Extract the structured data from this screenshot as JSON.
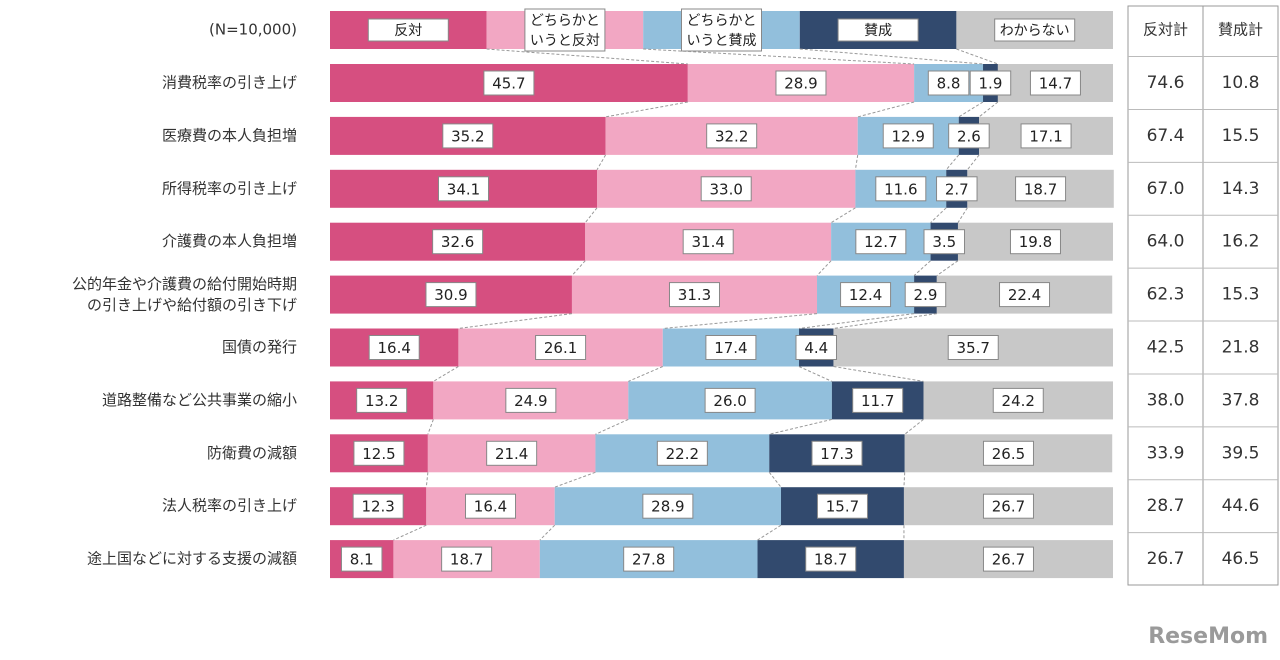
{
  "chart_data": {
    "type": "bar",
    "orientation": "horizontal",
    "stacked": true,
    "sample_note": "(N=10,000)",
    "categories": [
      "消費税率の引き上げ",
      "医療費の本人負担増",
      "所得税率の引き上げ",
      "介護費の本人負担増",
      "公的年金や介護費の給付開始時期\nの引き上げや給付額の引き下げ",
      "国債の発行",
      "道路整備など公共事業の縮小",
      "防衛費の減額",
      "法人税率の引き上げ",
      "途上国などに対する支援の減額"
    ],
    "xlim": [
      0,
      100
    ],
    "series": [
      {
        "name": "反対",
        "color": "#d64f80",
        "values": [
          45.7,
          35.2,
          34.1,
          32.6,
          30.9,
          16.4,
          13.2,
          12.5,
          12.3,
          8.1
        ],
        "value_labels": [
          "45.7",
          "35.2",
          "34.1",
          "32.6",
          "30.9",
          "16.4",
          "13.2",
          "12.5",
          "12.3",
          "8.1"
        ]
      },
      {
        "name": "どちらかと\nいうと反対",
        "color": "#f2a7c3",
        "values": [
          28.9,
          32.2,
          33.0,
          31.4,
          31.3,
          26.1,
          24.9,
          21.4,
          16.4,
          18.7
        ],
        "value_labels": [
          "28.9",
          "32.2",
          "33.0",
          "31.4",
          "31.3",
          "26.1",
          "24.9",
          "21.4",
          "16.4",
          "18.7"
        ]
      },
      {
        "name": "どちらかと\nいうと賛成",
        "color": "#92bfdc",
        "values": [
          8.8,
          12.9,
          11.6,
          12.7,
          12.4,
          17.4,
          26.0,
          22.2,
          28.9,
          27.8
        ],
        "value_labels": [
          "8.8",
          "12.9",
          "11.6",
          "12.7",
          "12.4",
          "17.4",
          "26.0",
          "22.2",
          "28.9",
          "27.8"
        ]
      },
      {
        "name": "賛成",
        "color": "#324a6e",
        "values": [
          1.9,
          2.6,
          2.7,
          3.5,
          2.9,
          4.4,
          11.7,
          17.3,
          15.7,
          18.7
        ],
        "value_labels": [
          "1.9",
          "2.6",
          "2.7",
          "3.5",
          "2.9",
          "4.4",
          "11.7",
          "17.3",
          "15.7",
          "18.7"
        ]
      },
      {
        "name": "わからない",
        "color": "#c8c8c8",
        "values": [
          14.7,
          17.1,
          18.7,
          19.8,
          22.4,
          35.7,
          24.2,
          26.5,
          26.7,
          26.7
        ],
        "value_labels": [
          "14.7",
          "17.1",
          "18.7",
          "19.8",
          "22.4",
          "35.7",
          "24.2",
          "26.5",
          "26.7",
          "26.7"
        ]
      }
    ]
  },
  "table": {
    "columns": [
      "反対計",
      "賛成計"
    ],
    "rows": [
      [
        "74.6",
        "10.8"
      ],
      [
        "67.4",
        "15.5"
      ],
      [
        "67.0",
        "14.3"
      ],
      [
        "64.0",
        "16.2"
      ],
      [
        "62.3",
        "15.3"
      ],
      [
        "42.5",
        "21.8"
      ],
      [
        "38.0",
        "37.8"
      ],
      [
        "33.9",
        "39.5"
      ],
      [
        "28.7",
        "44.6"
      ],
      [
        "26.7",
        "46.5"
      ]
    ]
  },
  "watermark": "ReseMom"
}
